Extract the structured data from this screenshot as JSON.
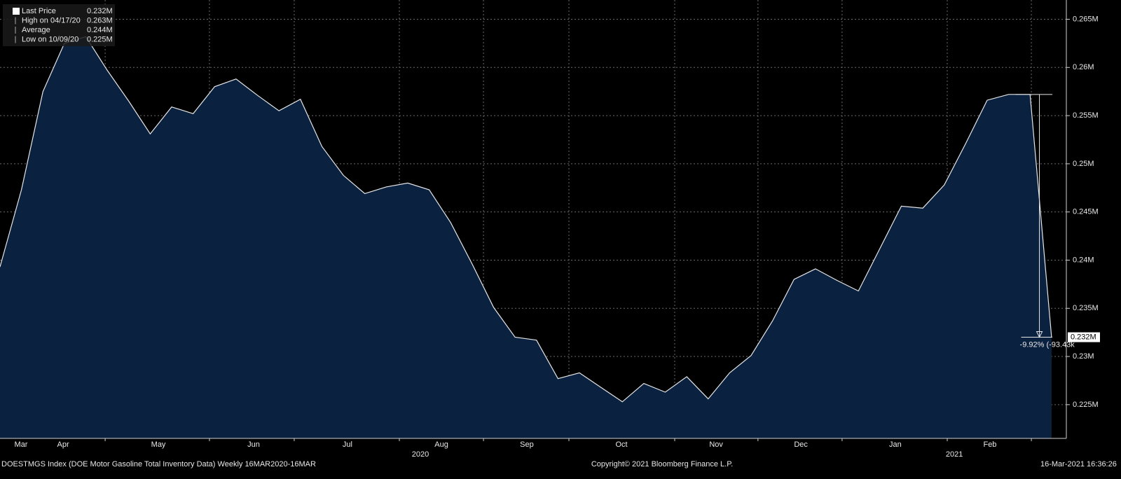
{
  "chart_data": {
    "type": "area",
    "x": [
      0,
      1,
      2,
      3,
      4,
      5,
      6,
      7,
      8,
      9,
      10,
      11,
      12,
      13,
      14,
      15,
      16,
      17,
      18,
      19,
      20,
      21,
      22,
      23,
      24,
      25,
      26,
      27,
      28,
      29,
      30,
      31,
      32,
      33,
      34,
      35,
      36,
      37,
      38,
      39,
      40,
      41,
      42,
      43,
      44,
      45,
      46,
      47,
      48,
      49
    ],
    "series": [
      {
        "name": "Last Price",
        "color": "#e6e6e6",
        "fill": "#0b2140",
        "values": [
          0.2393,
          0.2473,
          0.2575,
          0.2625,
          0.2632,
          0.2597,
          0.2565,
          0.2531,
          0.2559,
          0.2552,
          0.258,
          0.2588,
          0.2571,
          0.2555,
          0.2567,
          0.2518,
          0.2488,
          0.2469,
          0.2476,
          0.248,
          0.2473,
          0.2439,
          0.2396,
          0.2351,
          0.232,
          0.2317,
          0.2277,
          0.2283,
          0.2268,
          0.2253,
          0.2272,
          0.2263,
          0.2279,
          0.2256,
          0.2283,
          0.2301,
          0.2337,
          0.238,
          0.2391,
          0.2379,
          0.2368,
          0.2412,
          0.2456,
          0.2454,
          0.2478,
          0.2521,
          0.2566,
          0.2572,
          0.2572,
          0.232
        ]
      }
    ],
    "xlim": [
      0,
      49.69
    ],
    "xticks": [
      {
        "value": 0.98,
        "label": "Mar"
      },
      {
        "value": 2.94,
        "label": "Apr"
      },
      {
        "value": 7.38,
        "label": "May"
      },
      {
        "value": 11.82,
        "label": "Jun"
      },
      {
        "value": 16.19,
        "label": "Jul"
      },
      {
        "value": 20.57,
        "label": "Aug"
      },
      {
        "value": 24.55,
        "label": "Sep"
      },
      {
        "value": 28.96,
        "label": "Oct"
      },
      {
        "value": 33.37,
        "label": "Nov"
      },
      {
        "value": 37.32,
        "label": "Dec"
      },
      {
        "value": 41.72,
        "label": "Jan"
      },
      {
        "value": 46.13,
        "label": "Feb"
      }
    ],
    "xgrid": [
      4.9,
      9.76,
      13.71,
      18.61,
      22.53,
      26.51,
      31.44,
      35.32,
      39.24,
      44.14,
      48.06
    ],
    "years": [
      {
        "value": 19.59,
        "label": "2020"
      },
      {
        "value": 44.47,
        "label": "2021"
      }
    ],
    "ylim": [
      0.2215,
      0.267
    ],
    "yticks": [
      {
        "value": 0.225,
        "label": "0.225M"
      },
      {
        "value": 0.23,
        "label": "0.23M"
      },
      {
        "value": 0.235,
        "label": "0.235M"
      },
      {
        "value": 0.24,
        "label": "0.24M"
      },
      {
        "value": 0.245,
        "label": "0.245M"
      },
      {
        "value": 0.25,
        "label": "0.25M"
      },
      {
        "value": 0.255,
        "label": "0.255M"
      },
      {
        "value": 0.26,
        "label": "0.26M"
      },
      {
        "value": 0.265,
        "label": "0.265M"
      }
    ],
    "grid": true,
    "legend": "top-left",
    "stats": [
      {
        "name": "Last Price",
        "value": 0.232,
        "label": "0.232M"
      },
      {
        "name": "High on 04/17/20",
        "value": 0.263,
        "label": "0.263M"
      },
      {
        "name": "Average",
        "value": 0.244,
        "label": "0.244M"
      },
      {
        "name": "Low on 10/09/20",
        "value": 0.225,
        "label": "0.225M"
      }
    ],
    "last_price_label": "0.232M",
    "change_annotation": "-9.92% (-93.43k",
    "footer_left": "DOESTMGS Index (DOE Motor Gasoline Total Inventory Data)  Weekly 16MAR2020-16MAR",
    "footer_center": "Copyright© 2021 Bloomberg Finance L.P.",
    "footer_right": "16-Mar-2021 16:36:26"
  }
}
